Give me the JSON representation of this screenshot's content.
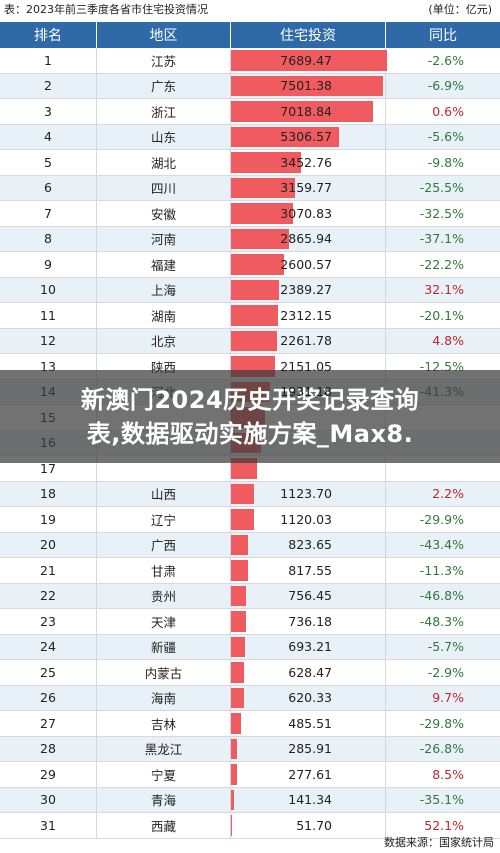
{
  "caption": "表：2023年前三季度各省市住宅投资情况",
  "unit": "(单位：亿元)",
  "headers": {
    "rank": "排名",
    "region": "地区",
    "investment": "住宅投资",
    "yoy": "同比"
  },
  "rows": [
    {
      "rank": "1",
      "region": "江苏",
      "investment": "7689.47",
      "value": 7689.47,
      "yoy": "-2.6%",
      "sign": "neg"
    },
    {
      "rank": "2",
      "region": "广东",
      "investment": "7501.38",
      "value": 7501.38,
      "yoy": "-6.9%",
      "sign": "neg"
    },
    {
      "rank": "3",
      "region": "浙江",
      "investment": "7018.84",
      "value": 7018.84,
      "yoy": "0.6%",
      "sign": "pos"
    },
    {
      "rank": "4",
      "region": "山东",
      "investment": "5306.57",
      "value": 5306.57,
      "yoy": "-5.6%",
      "sign": "neg"
    },
    {
      "rank": "5",
      "region": "湖北",
      "investment": "3452.76",
      "value": 3452.76,
      "yoy": "-9.8%",
      "sign": "neg"
    },
    {
      "rank": "6",
      "region": "四川",
      "investment": "3159.77",
      "value": 3159.77,
      "yoy": "-25.5%",
      "sign": "neg"
    },
    {
      "rank": "7",
      "region": "安徽",
      "investment": "3070.83",
      "value": 3070.83,
      "yoy": "-32.5%",
      "sign": "neg"
    },
    {
      "rank": "8",
      "region": "河南",
      "investment": "2865.94",
      "value": 2865.94,
      "yoy": "-37.1%",
      "sign": "neg"
    },
    {
      "rank": "9",
      "region": "福建",
      "investment": "2600.57",
      "value": 2600.57,
      "yoy": "-22.2%",
      "sign": "neg"
    },
    {
      "rank": "10",
      "region": "上海",
      "investment": "2389.27",
      "value": 2389.27,
      "yoy": "32.1%",
      "sign": "pos"
    },
    {
      "rank": "11",
      "region": "湖南",
      "investment": "2312.15",
      "value": 2312.15,
      "yoy": "-20.1%",
      "sign": "neg"
    },
    {
      "rank": "12",
      "region": "北京",
      "investment": "2261.78",
      "value": 2261.78,
      "yoy": "4.8%",
      "sign": "pos"
    },
    {
      "rank": "13",
      "region": "陕西",
      "investment": "2151.05",
      "value": 2151.05,
      "yoy": "-12.5%",
      "sign": "neg"
    },
    {
      "rank": "14",
      "region": "河北",
      "investment": "1931.18",
      "value": 1931.18,
      "yoy": "-41.3%",
      "sign": "neg"
    },
    {
      "rank": "15",
      "region": "",
      "investment": "",
      "value": 1700,
      "yoy": "",
      "sign": "neg"
    },
    {
      "rank": "16",
      "region": "",
      "investment": "",
      "value": 1500,
      "yoy": "",
      "sign": "neg"
    },
    {
      "rank": "17",
      "region": "",
      "investment": "",
      "value": 1300,
      "yoy": "",
      "sign": "neg"
    },
    {
      "rank": "18",
      "region": "山西",
      "investment": "1123.70",
      "value": 1123.7,
      "yoy": "2.2%",
      "sign": "pos"
    },
    {
      "rank": "19",
      "region": "辽宁",
      "investment": "1120.03",
      "value": 1120.03,
      "yoy": "-29.9%",
      "sign": "neg"
    },
    {
      "rank": "20",
      "region": "广西",
      "investment": "823.65",
      "value": 823.65,
      "yoy": "-43.4%",
      "sign": "neg"
    },
    {
      "rank": "21",
      "region": "甘肃",
      "investment": "817.55",
      "value": 817.55,
      "yoy": "-11.3%",
      "sign": "neg"
    },
    {
      "rank": "22",
      "region": "贵州",
      "investment": "756.45",
      "value": 756.45,
      "yoy": "-46.8%",
      "sign": "neg"
    },
    {
      "rank": "23",
      "region": "天津",
      "investment": "736.18",
      "value": 736.18,
      "yoy": "-48.3%",
      "sign": "neg"
    },
    {
      "rank": "24",
      "region": "新疆",
      "investment": "693.21",
      "value": 693.21,
      "yoy": "-5.7%",
      "sign": "neg"
    },
    {
      "rank": "25",
      "region": "内蒙古",
      "investment": "628.47",
      "value": 628.47,
      "yoy": "-2.9%",
      "sign": "neg"
    },
    {
      "rank": "26",
      "region": "海南",
      "investment": "620.33",
      "value": 620.33,
      "yoy": "9.7%",
      "sign": "pos"
    },
    {
      "rank": "27",
      "region": "吉林",
      "investment": "485.51",
      "value": 485.51,
      "yoy": "-29.8%",
      "sign": "neg"
    },
    {
      "rank": "28",
      "region": "黑龙江",
      "investment": "285.91",
      "value": 285.91,
      "yoy": "-26.8%",
      "sign": "neg"
    },
    {
      "rank": "29",
      "region": "宁夏",
      "investment": "277.61",
      "value": 277.61,
      "yoy": "8.5%",
      "sign": "pos"
    },
    {
      "rank": "30",
      "region": "青海",
      "investment": "141.34",
      "value": 141.34,
      "yoy": "-35.1%",
      "sign": "neg"
    },
    {
      "rank": "31",
      "region": "西藏",
      "investment": "51.70",
      "value": 51.7,
      "yoy": "52.1%",
      "sign": "pos"
    }
  ],
  "overlay": {
    "line1": "新澳门2024历史开奖记录查询",
    "line2": "表,数据驱动实施方案_Max8."
  },
  "source": "数据来源：国家统计局",
  "colors": {
    "header_bg": "#2e6aa7",
    "bar": "#ef5b5e",
    "alt_row": "#e8f0f8",
    "negative": "#2f7a3a",
    "positive": "#c0272d"
  }
}
